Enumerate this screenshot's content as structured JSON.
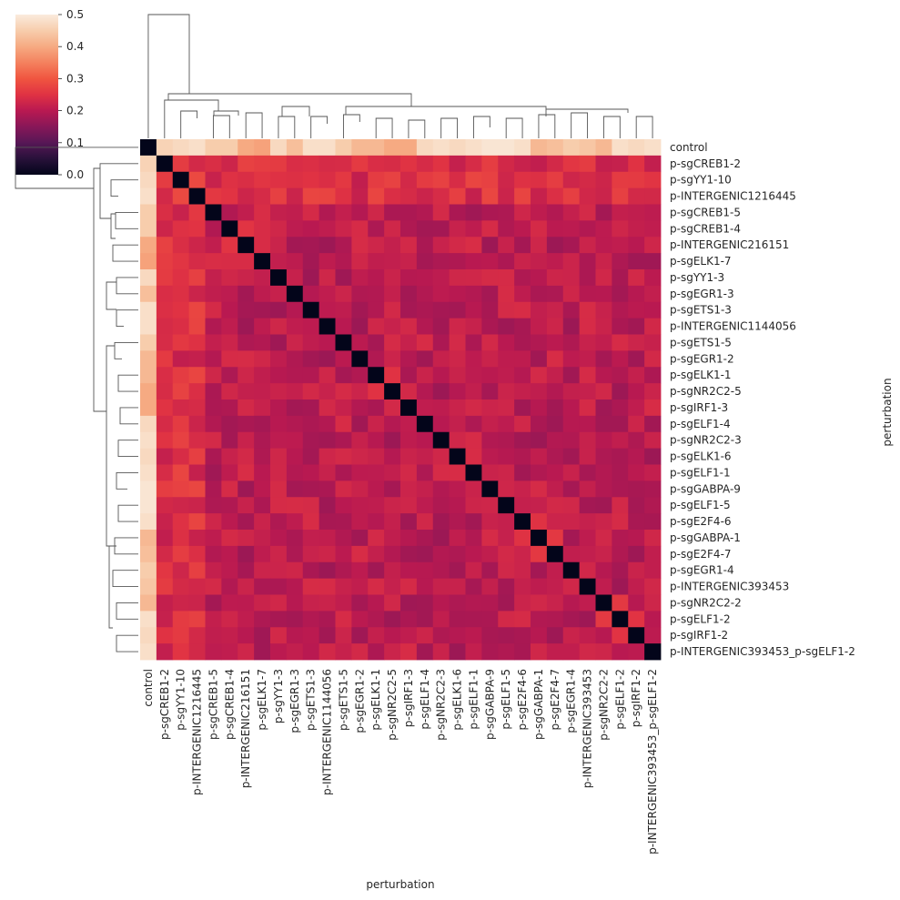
{
  "chart_data": {
    "type": "heatmap",
    "title": "",
    "xlabel": "perturbation",
    "ylabel": "perturbation",
    "labels": [
      "control",
      "p-sgCREB1-2",
      "p-sgYY1-10",
      "p-INTERGENIC1216445",
      "p-sgCREB1-5",
      "p-sgCREB1-4",
      "p-INTERGENIC216151",
      "p-sgELK1-7",
      "p-sgYY1-3",
      "p-sgEGR1-3",
      "p-sgETS1-3",
      "p-INTERGENIC1144056",
      "p-sgETS1-5",
      "p-sgEGR1-2",
      "p-sgELK1-1",
      "p-sgNR2C2-5",
      "p-sgIRF1-3",
      "p-sgELF1-4",
      "p-sgNR2C2-3",
      "p-sgELK1-6",
      "p-sgELF1-1",
      "p-sgGABPA-9",
      "p-sgELF1-5",
      "p-sgE2F4-6",
      "p-sgGABPA-1",
      "p-sgE2F4-7",
      "p-sgEGR1-4",
      "p-INTERGENIC393453",
      "p-sgNR2C2-2",
      "p-sgELF1-2",
      "p-sgIRF1-2",
      "p-INTERGENIC393453_p-sgELF1-2"
    ],
    "first_row_values": [
      0.0,
      0.46,
      0.47,
      0.48,
      0.45,
      0.45,
      0.4,
      0.39,
      0.47,
      0.43,
      0.48,
      0.48,
      0.45,
      0.42,
      0.42,
      0.4,
      0.4,
      0.47,
      0.48,
      0.47,
      0.48,
      0.49,
      0.49,
      0.48,
      0.42,
      0.43,
      0.45,
      0.44,
      0.42,
      0.48,
      0.47,
      0.48
    ],
    "value_range": [
      0.0,
      0.5
    ],
    "colorbar": {
      "ticks": [
        "0.0",
        "0.1",
        "0.2",
        "0.3",
        "0.4",
        "0.5"
      ],
      "colormap": "rocket"
    },
    "dendrogram": true
  }
}
